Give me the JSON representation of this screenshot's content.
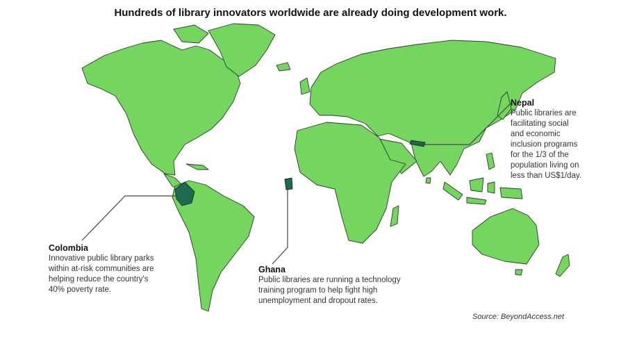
{
  "title": "Hundreds of library innovators worldwide are already doing development work.",
  "colors": {
    "land": "#74d65e",
    "highlight": "#1e6b50"
  },
  "highlighted_countries": [
    "Colombia",
    "Ghana",
    "Nepal"
  ],
  "callouts": {
    "colombia": {
      "heading": "Colombia",
      "lines": [
        "Innovative public library parks",
        "within at-risk communities are",
        "helping reduce the country's",
        "40% poverty rate."
      ]
    },
    "ghana": {
      "heading": "Ghana",
      "lines": [
        "Public libraries are running a technology",
        "training program to help fight high",
        "unemployment and dropout rates."
      ]
    },
    "nepal": {
      "heading": "Nepal",
      "lines": [
        "Public libraries are",
        "facilitating social",
        "and economic",
        "inclusion programs",
        "for the 1/3 of the",
        "population living on",
        "less than US$1/day."
      ]
    }
  },
  "source": "Source: BeyondAccess.net"
}
